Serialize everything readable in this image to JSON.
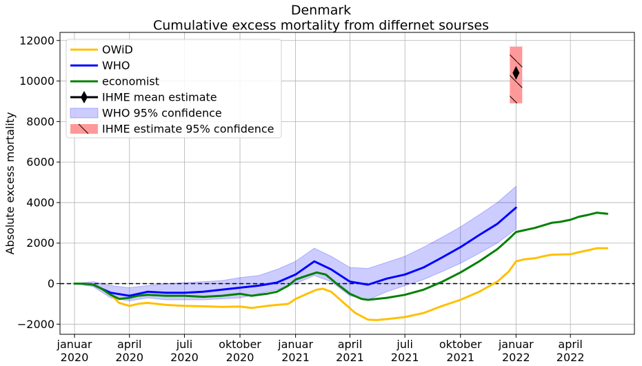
{
  "chart_data": {
    "type": "line",
    "title": "Denmark",
    "subtitle": "Cumulative excess mortality from differnet sourses",
    "ylabel": "Absolute excess mortality",
    "xlabel": "",
    "xlim": [
      "2019-12-08",
      "2022-07-16"
    ],
    "ylim": [
      -2500,
      12400
    ],
    "grid": true,
    "legend_position": "top-left",
    "x_ticks": [
      {
        "date": "2020-01-01",
        "label": [
          "januar",
          "2020"
        ]
      },
      {
        "date": "2020-04-01",
        "label": [
          "april",
          "2020"
        ]
      },
      {
        "date": "2020-07-01",
        "label": [
          "juli",
          "2020"
        ]
      },
      {
        "date": "2020-10-01",
        "label": [
          "oktober",
          "2020"
        ]
      },
      {
        "date": "2021-01-01",
        "label": [
          "januar",
          "2021"
        ]
      },
      {
        "date": "2021-04-01",
        "label": [
          "april",
          "2021"
        ]
      },
      {
        "date": "2021-07-01",
        "label": [
          "juli",
          "2021"
        ]
      },
      {
        "date": "2021-10-01",
        "label": [
          "oktober",
          "2021"
        ]
      },
      {
        "date": "2022-01-01",
        "label": [
          "januar",
          "2022"
        ]
      },
      {
        "date": "2022-04-01",
        "label": [
          "april",
          "2022"
        ]
      }
    ],
    "y_ticks": [
      {
        "value": -2000,
        "label": "−2000"
      },
      {
        "value": 0,
        "label": "0"
      },
      {
        "value": 2000,
        "label": "2000"
      },
      {
        "value": 4000,
        "label": "4000"
      },
      {
        "value": 6000,
        "label": "6000"
      },
      {
        "value": 8000,
        "label": "8000"
      },
      {
        "value": 10000,
        "label": "10000"
      },
      {
        "value": 12000,
        "label": "12000"
      }
    ],
    "reference_line": {
      "y": 0,
      "style": "dashed",
      "color": "#000000"
    },
    "series": [
      {
        "name": "OWiD",
        "color": "#ffc000",
        "points": [
          [
            "2020-01-01",
            0
          ],
          [
            "2020-01-15",
            0
          ],
          [
            "2020-02-01",
            -50
          ],
          [
            "2020-02-15",
            -250
          ],
          [
            "2020-03-01",
            -550
          ],
          [
            "2020-03-15",
            -950
          ],
          [
            "2020-04-01",
            -1100
          ],
          [
            "2020-04-15",
            -1000
          ],
          [
            "2020-05-01",
            -950
          ],
          [
            "2020-06-01",
            -1050
          ],
          [
            "2020-07-01",
            -1100
          ],
          [
            "2020-08-01",
            -1120
          ],
          [
            "2020-09-01",
            -1150
          ],
          [
            "2020-10-01",
            -1130
          ],
          [
            "2020-10-20",
            -1200
          ],
          [
            "2020-11-15",
            -1100
          ],
          [
            "2020-12-01",
            -1050
          ],
          [
            "2020-12-20",
            -1000
          ],
          [
            "2021-01-01",
            -750
          ],
          [
            "2021-01-20",
            -500
          ],
          [
            "2021-02-05",
            -300
          ],
          [
            "2021-02-15",
            -250
          ],
          [
            "2021-03-01",
            -400
          ],
          [
            "2021-03-20",
            -900
          ],
          [
            "2021-04-10",
            -1450
          ],
          [
            "2021-05-01",
            -1780
          ],
          [
            "2021-05-15",
            -1800
          ],
          [
            "2021-06-01",
            -1750
          ],
          [
            "2021-07-01",
            -1650
          ],
          [
            "2021-08-01",
            -1450
          ],
          [
            "2021-09-01",
            -1100
          ],
          [
            "2021-10-01",
            -800
          ],
          [
            "2021-11-01",
            -400
          ],
          [
            "2021-12-01",
            100
          ],
          [
            "2021-12-20",
            600
          ],
          [
            "2022-01-01",
            1100
          ],
          [
            "2022-01-15",
            1200
          ],
          [
            "2022-02-01",
            1250
          ],
          [
            "2022-02-15",
            1350
          ],
          [
            "2022-03-01",
            1430
          ],
          [
            "2022-04-01",
            1450
          ],
          [
            "2022-04-15",
            1550
          ],
          [
            "2022-05-01",
            1650
          ],
          [
            "2022-05-15",
            1750
          ],
          [
            "2022-06-01",
            1750
          ]
        ]
      },
      {
        "name": "WHO",
        "color": "#0000ff",
        "points": [
          [
            "2020-01-01",
            0
          ],
          [
            "2020-01-15",
            0
          ],
          [
            "2020-02-01",
            -50
          ],
          [
            "2020-02-15",
            -250
          ],
          [
            "2020-03-01",
            -450
          ],
          [
            "2020-04-01",
            -600
          ],
          [
            "2020-05-01",
            -400
          ],
          [
            "2020-06-01",
            -450
          ],
          [
            "2020-07-01",
            -450
          ],
          [
            "2020-08-01",
            -400
          ],
          [
            "2020-09-01",
            -300
          ],
          [
            "2020-10-01",
            -200
          ],
          [
            "2020-11-01",
            -100
          ],
          [
            "2020-12-01",
            50
          ],
          [
            "2021-01-01",
            450
          ],
          [
            "2021-02-01",
            1100
          ],
          [
            "2021-03-01",
            700
          ],
          [
            "2021-04-01",
            100
          ],
          [
            "2021-05-01",
            -50
          ],
          [
            "2021-06-01",
            250
          ],
          [
            "2021-07-01",
            450
          ],
          [
            "2021-08-01",
            800
          ],
          [
            "2021-09-01",
            1300
          ],
          [
            "2021-10-01",
            1800
          ],
          [
            "2021-11-01",
            2400
          ],
          [
            "2021-12-01",
            2950
          ],
          [
            "2022-01-01",
            3750
          ]
        ]
      },
      {
        "name": "economist",
        "color": "#008000",
        "points": [
          [
            "2020-01-01",
            0
          ],
          [
            "2020-01-15",
            0
          ],
          [
            "2020-02-01",
            -50
          ],
          [
            "2020-02-15",
            -250
          ],
          [
            "2020-03-01",
            -550
          ],
          [
            "2020-03-15",
            -750
          ],
          [
            "2020-04-01",
            -700
          ],
          [
            "2020-04-15",
            -600
          ],
          [
            "2020-05-01",
            -550
          ],
          [
            "2020-06-01",
            -600
          ],
          [
            "2020-07-01",
            -600
          ],
          [
            "2020-08-01",
            -650
          ],
          [
            "2020-09-01",
            -600
          ],
          [
            "2020-10-01",
            -500
          ],
          [
            "2020-10-20",
            -600
          ],
          [
            "2020-11-15",
            -500
          ],
          [
            "2020-12-01",
            -400
          ],
          [
            "2020-12-20",
            -100
          ],
          [
            "2021-01-01",
            200
          ],
          [
            "2021-01-20",
            400
          ],
          [
            "2021-02-05",
            550
          ],
          [
            "2021-02-20",
            450
          ],
          [
            "2021-03-10",
            0
          ],
          [
            "2021-04-01",
            -500
          ],
          [
            "2021-04-20",
            -750
          ],
          [
            "2021-05-01",
            -800
          ],
          [
            "2021-06-01",
            -700
          ],
          [
            "2021-07-01",
            -550
          ],
          [
            "2021-08-01",
            -300
          ],
          [
            "2021-09-01",
            100
          ],
          [
            "2021-10-01",
            550
          ],
          [
            "2021-11-01",
            1100
          ],
          [
            "2021-12-01",
            1700
          ],
          [
            "2021-12-20",
            2200
          ],
          [
            "2022-01-01",
            2550
          ],
          [
            "2022-02-01",
            2750
          ],
          [
            "2022-03-01",
            3000
          ],
          [
            "2022-03-15",
            3050
          ],
          [
            "2022-04-01",
            3150
          ],
          [
            "2022-04-15",
            3300
          ],
          [
            "2022-05-01",
            3400
          ],
          [
            "2022-05-15",
            3500
          ],
          [
            "2022-06-01",
            3450
          ]
        ]
      }
    ],
    "bands": [
      {
        "name": "WHO 95% confidence",
        "color": "#0000ff",
        "opacity": 0.2,
        "points": [
          [
            "2020-01-01",
            0,
            0
          ],
          [
            "2020-02-01",
            -150,
            100
          ],
          [
            "2020-03-01",
            -700,
            -100
          ],
          [
            "2020-04-01",
            -850,
            -200
          ],
          [
            "2020-05-01",
            -700,
            -100
          ],
          [
            "2020-06-01",
            -800,
            0
          ],
          [
            "2020-07-01",
            -800,
            50
          ],
          [
            "2020-08-01",
            -800,
            100
          ],
          [
            "2020-09-01",
            -750,
            150
          ],
          [
            "2020-10-01",
            -700,
            300
          ],
          [
            "2020-11-01",
            -500,
            400
          ],
          [
            "2020-12-01",
            -300,
            700
          ],
          [
            "2021-01-01",
            0,
            1100
          ],
          [
            "2021-02-01",
            400,
            1750
          ],
          [
            "2021-03-01",
            100,
            1350
          ],
          [
            "2021-04-01",
            -600,
            800
          ],
          [
            "2021-05-01",
            -800,
            750
          ],
          [
            "2021-06-01",
            -400,
            1050
          ],
          [
            "2021-07-01",
            -100,
            1350
          ],
          [
            "2021-08-01",
            200,
            1800
          ],
          [
            "2021-09-01",
            600,
            2300
          ],
          [
            "2021-10-01",
            1000,
            2800
          ],
          [
            "2021-11-01",
            1500,
            3400
          ],
          [
            "2021-12-01",
            2000,
            4000
          ],
          [
            "2022-01-01",
            2700,
            4800
          ]
        ]
      }
    ],
    "ihme": {
      "mean_label": "IHME mean estimate",
      "ci_label": " IHME estimate 95% confidence",
      "date": "2022-01-01",
      "mean": 10400,
      "ci": [
        8900,
        11700
      ],
      "marker_color": "#000000",
      "ci_color": "#ff9999"
    },
    "legend": [
      {
        "key": "owid",
        "label": "OWiD",
        "kind": "line",
        "color": "#ffc000"
      },
      {
        "key": "who",
        "label": "WHO",
        "kind": "line",
        "color": "#0000ff"
      },
      {
        "key": "economist",
        "label": "economist",
        "kind": "line",
        "color": "#008000"
      },
      {
        "key": "ihme-mean",
        "label": "IHME mean estimate",
        "kind": "marker",
        "color": "#000000"
      },
      {
        "key": "who-ci",
        "label": "WHO 95% confidence",
        "kind": "band",
        "color": "#0000ff"
      },
      {
        "key": "ihme-ci",
        "label": " IHME estimate 95% confidence",
        "kind": "hatch",
        "color": "#ff9999"
      }
    ]
  }
}
